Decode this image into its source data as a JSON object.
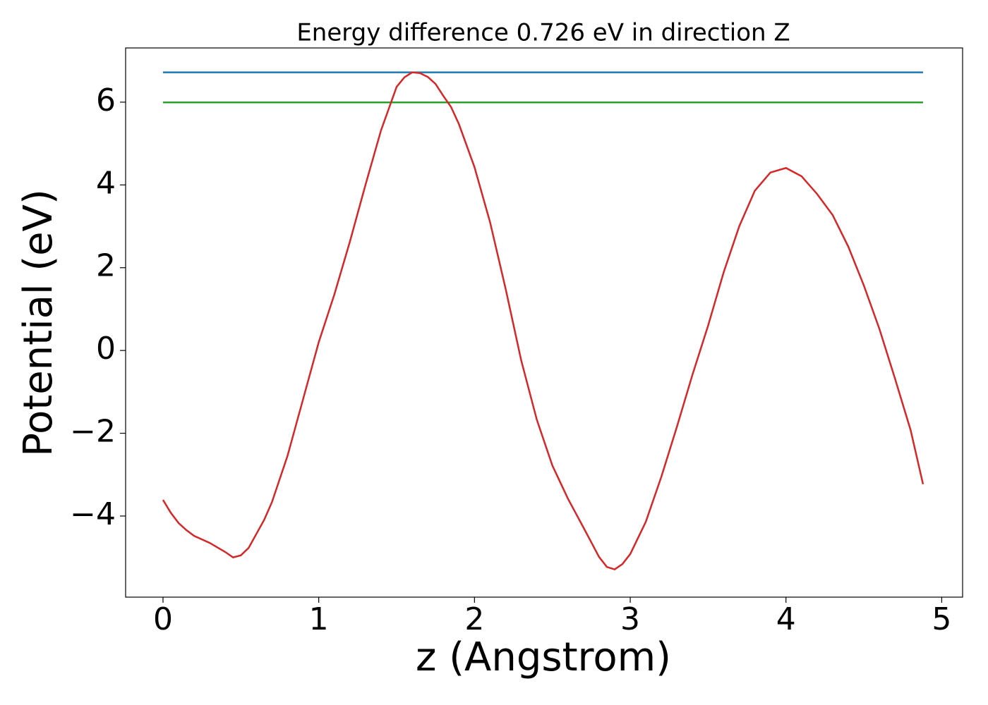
{
  "chart_data": {
    "type": "line",
    "title": "Energy difference 0.726 eV in direction Z",
    "x_label": "z (Angstrom)",
    "y_label": "Potential (eV)",
    "series": [
      {
        "color": "#1f77b4",
        "x": [
          0,
          4.88
        ],
        "values": [
          6.72,
          6.72
        ]
      },
      {
        "color": "#2ca02c",
        "x": [
          0,
          4.88
        ],
        "values": [
          5.994,
          5.994
        ]
      },
      {
        "color": "#d62728",
        "x": [
          0,
          0.05,
          0.1,
          0.15,
          0.2,
          0.3,
          0.4,
          0.45,
          0.5,
          0.55,
          0.6,
          0.65,
          0.7,
          0.8,
          0.9,
          1.0,
          1.1,
          1.2,
          1.3,
          1.4,
          1.5,
          1.55,
          1.6,
          1.65,
          1.7,
          1.75,
          1.8,
          1.85,
          1.9,
          2.0,
          2.1,
          2.2,
          2.3,
          2.4,
          2.5,
          2.6,
          2.7,
          2.8,
          2.85,
          2.9,
          2.95,
          3.0,
          3.1,
          3.2,
          3.3,
          3.4,
          3.5,
          3.6,
          3.7,
          3.8,
          3.9,
          4.0,
          4.1,
          4.2,
          4.3,
          4.4,
          4.5,
          4.6,
          4.7,
          4.8,
          4.88
        ],
        "values": [
          -3.61,
          -3.92,
          -4.17,
          -4.34,
          -4.48,
          -4.65,
          -4.87,
          -5.0,
          -4.95,
          -4.77,
          -4.43,
          -4.09,
          -3.66,
          -2.54,
          -1.17,
          0.2,
          1.35,
          2.63,
          4.0,
          5.32,
          6.37,
          6.6,
          6.72,
          6.7,
          6.61,
          6.44,
          6.15,
          5.88,
          5.47,
          4.43,
          3.1,
          1.49,
          -0.24,
          -1.67,
          -2.78,
          -3.58,
          -4.28,
          -4.99,
          -5.23,
          -5.29,
          -5.16,
          -4.92,
          -4.14,
          -3.05,
          -1.84,
          -0.58,
          0.6,
          1.89,
          3.0,
          3.86,
          4.3,
          4.41,
          4.21,
          3.78,
          3.27,
          2.51,
          1.57,
          0.52,
          -0.68,
          -1.92,
          -3.23
        ]
      }
    ],
    "xlim": [
      -0.24,
      5.134
    ],
    "ylim": [
      -5.96,
      7.31
    ],
    "xticks": [
      0,
      1,
      2,
      3,
      4,
      5
    ],
    "yticks": [
      {
        "value": -4,
        "label": "−4"
      },
      {
        "value": -2,
        "label": "−2"
      },
      0,
      2,
      4,
      6
    ],
    "grid": false
  }
}
